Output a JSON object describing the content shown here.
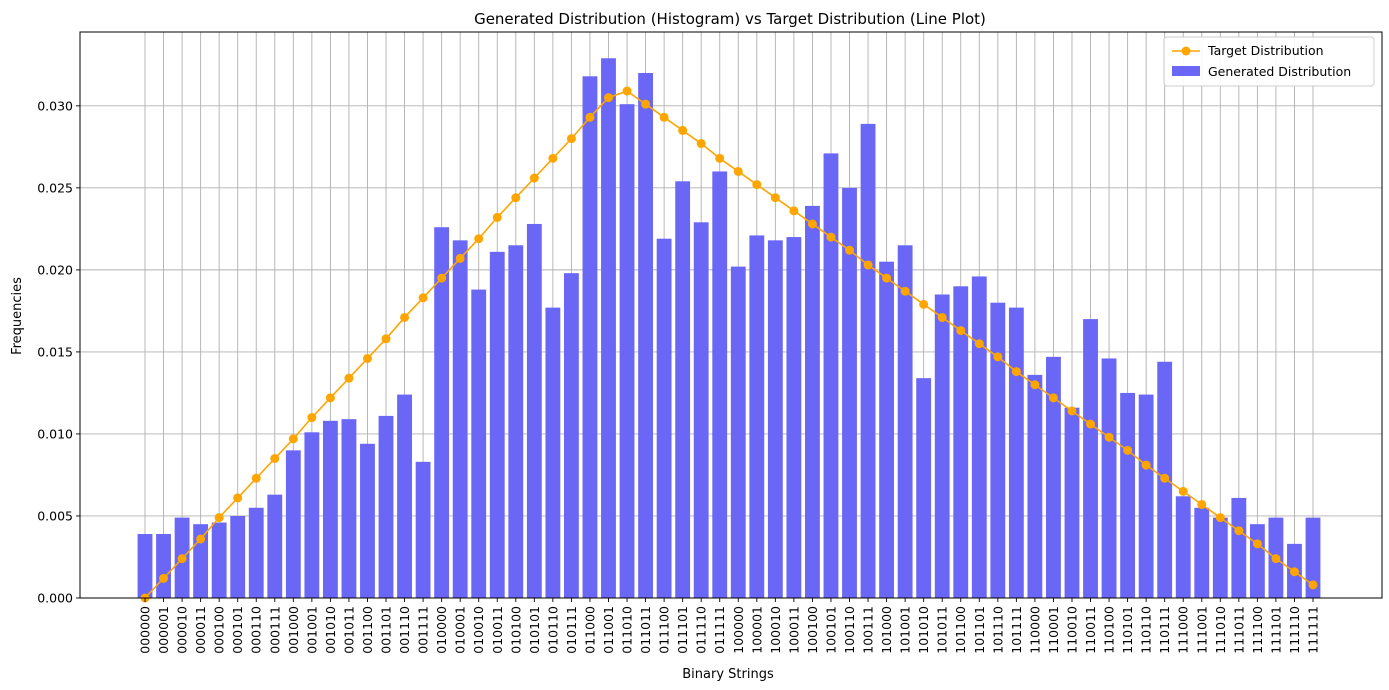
{
  "chart_data": {
    "type": "bar",
    "title": "Generated Distribution (Histogram) vs Target Distribution (Line Plot)",
    "xlabel": "Binary Strings",
    "ylabel": "Frequencies",
    "ylim": [
      0,
      0.0345
    ],
    "yticks": [
      0.0,
      0.005,
      0.01,
      0.015,
      0.02,
      0.025,
      0.03
    ],
    "ytick_labels": [
      "0.000",
      "0.005",
      "0.010",
      "0.015",
      "0.020",
      "0.025",
      "0.030"
    ],
    "grid": true,
    "legend_position": "top-right",
    "categories": [
      "000000",
      "000001",
      "000010",
      "000011",
      "000100",
      "000101",
      "000110",
      "000111",
      "001000",
      "001001",
      "001010",
      "001011",
      "001100",
      "001101",
      "001110",
      "001111",
      "010000",
      "010001",
      "010010",
      "010011",
      "010100",
      "010101",
      "010110",
      "010111",
      "011000",
      "011001",
      "011010",
      "011011",
      "011100",
      "011101",
      "011110",
      "011111",
      "100000",
      "100001",
      "100010",
      "100011",
      "100100",
      "100101",
      "100110",
      "100111",
      "101000",
      "101001",
      "101010",
      "101011",
      "101100",
      "101101",
      "101110",
      "101111",
      "110000",
      "110001",
      "110010",
      "110011",
      "110100",
      "110101",
      "110110",
      "110111",
      "111000",
      "111001",
      "111010",
      "111011",
      "111100",
      "111101",
      "111110",
      "111111"
    ],
    "series": [
      {
        "name": "Target Distribution",
        "kind": "line",
        "color": "#ffa500",
        "values": [
          0.0,
          0.0012,
          0.0024,
          0.0036,
          0.0049,
          0.0061,
          0.0073,
          0.0085,
          0.0097,
          0.011,
          0.0122,
          0.0134,
          0.0146,
          0.0158,
          0.0171,
          0.0183,
          0.0195,
          0.0207,
          0.0219,
          0.0232,
          0.0244,
          0.0256,
          0.0268,
          0.028,
          0.0293,
          0.0305,
          0.0309,
          0.0301,
          0.0293,
          0.0285,
          0.0277,
          0.0268,
          0.026,
          0.0252,
          0.0244,
          0.0236,
          0.0228,
          0.022,
          0.0212,
          0.0203,
          0.0195,
          0.0187,
          0.0179,
          0.0171,
          0.0163,
          0.0155,
          0.0147,
          0.0138,
          0.013,
          0.0122,
          0.0114,
          0.0106,
          0.0098,
          0.009,
          0.0081,
          0.0073,
          0.0065,
          0.0057,
          0.0049,
          0.0041,
          0.0033,
          0.0024,
          0.0016,
          0.0008
        ]
      },
      {
        "name": "Generated Distribution",
        "kind": "bar",
        "color": "#6a66f6",
        "values": [
          0.0039,
          0.0039,
          0.0049,
          0.0045,
          0.0046,
          0.005,
          0.0055,
          0.0063,
          0.009,
          0.0101,
          0.0108,
          0.0109,
          0.0094,
          0.0111,
          0.0124,
          0.0083,
          0.0226,
          0.0218,
          0.0188,
          0.0211,
          0.0215,
          0.0228,
          0.0177,
          0.0198,
          0.0318,
          0.0329,
          0.0301,
          0.032,
          0.0219,
          0.0254,
          0.0229,
          0.026,
          0.0202,
          0.0221,
          0.0218,
          0.022,
          0.0239,
          0.0271,
          0.025,
          0.0289,
          0.0205,
          0.0215,
          0.0134,
          0.0185,
          0.019,
          0.0196,
          0.018,
          0.0177,
          0.0136,
          0.0147,
          0.0116,
          0.017,
          0.0146,
          0.0125,
          0.0124,
          0.0144,
          0.0062,
          0.0055,
          0.0049,
          0.0061,
          0.0045,
          0.0049,
          0.0033,
          0.0049
        ]
      }
    ]
  }
}
